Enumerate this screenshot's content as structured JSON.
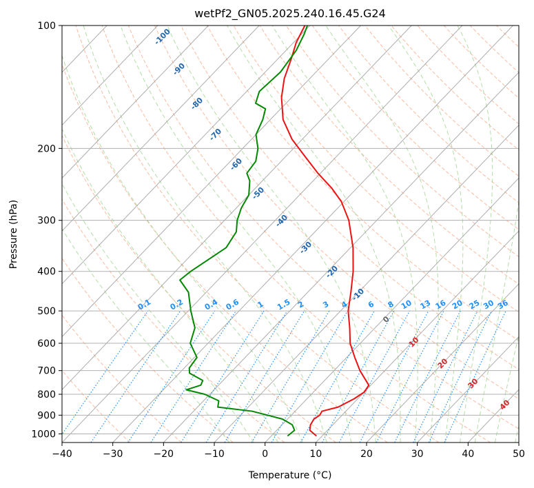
{
  "chart_data": {
    "type": "line",
    "chart_kind": "skew-T log-P diagram",
    "title": "wetPf2_GN05.2025.240.16.45.G24",
    "xlabel": "Temperature (°C)",
    "ylabel": "Pressure (hPa)",
    "xlim": [
      -40,
      50
    ],
    "ylim": [
      1050,
      100
    ],
    "y_scale": "log",
    "x_ticks": [
      "−40",
      "−30",
      "−20",
      "−10",
      "0",
      "10",
      "20",
      "30",
      "40",
      "50"
    ],
    "y_ticks": [
      100,
      200,
      300,
      400,
      500,
      600,
      700,
      800,
      900,
      1000
    ],
    "grid": true,
    "legend": "none",
    "series": [
      {
        "role": "temperature",
        "color": "#ee1111",
        "points": [
          {
            "p": 1012,
            "t": 8.9
          },
          {
            "p": 980,
            "t": 6.5
          },
          {
            "p": 950,
            "t": 5.6
          },
          {
            "p": 920,
            "t": 5.2
          },
          {
            "p": 900,
            "t": 5.6
          },
          {
            "p": 880,
            "t": 5.3
          },
          {
            "p": 860,
            "t": 7.7
          },
          {
            "p": 820,
            "t": 9.3
          },
          {
            "p": 790,
            "t": 10.0
          },
          {
            "p": 760,
            "t": 9.6
          },
          {
            "p": 700,
            "t": 5.1
          },
          {
            "p": 650,
            "t": 1.6
          },
          {
            "p": 600,
            "t": -2.0
          },
          {
            "p": 550,
            "t": -5.0
          },
          {
            "p": 500,
            "t": -8.5
          },
          {
            "p": 450,
            "t": -11.5
          },
          {
            "p": 400,
            "t": -15.0
          },
          {
            "p": 350,
            "t": -19.5
          },
          {
            "p": 300,
            "t": -25.5
          },
          {
            "p": 270,
            "t": -30.5
          },
          {
            "p": 250,
            "t": -35.0
          },
          {
            "p": 230,
            "t": -40.5
          },
          {
            "p": 210,
            "t": -46.0
          },
          {
            "p": 190,
            "t": -52.0
          },
          {
            "p": 170,
            "t": -57.5
          },
          {
            "p": 150,
            "t": -62.0
          },
          {
            "p": 135,
            "t": -65.0
          },
          {
            "p": 120,
            "t": -67.5
          },
          {
            "p": 110,
            "t": -69.5
          },
          {
            "p": 100,
            "t": -71.0
          }
        ]
      },
      {
        "role": "dewpoint",
        "color": "#008800",
        "points": [
          {
            "p": 1012,
            "t": 3.2
          },
          {
            "p": 980,
            "t": 3.5
          },
          {
            "p": 950,
            "t": 2.0
          },
          {
            "p": 920,
            "t": -1.0
          },
          {
            "p": 880,
            "t": -8.5
          },
          {
            "p": 860,
            "t": -16.0
          },
          {
            "p": 830,
            "t": -17.0
          },
          {
            "p": 800,
            "t": -21.0
          },
          {
            "p": 780,
            "t": -25.5
          },
          {
            "p": 760,
            "t": -23.5
          },
          {
            "p": 740,
            "t": -24.0
          },
          {
            "p": 710,
            "t": -28.0
          },
          {
            "p": 690,
            "t": -29.0
          },
          {
            "p": 650,
            "t": -29.5
          },
          {
            "p": 600,
            "t": -33.5
          },
          {
            "p": 550,
            "t": -35.5
          },
          {
            "p": 500,
            "t": -39.5
          },
          {
            "p": 450,
            "t": -43.5
          },
          {
            "p": 420,
            "t": -47.5
          },
          {
            "p": 400,
            "t": -47.0
          },
          {
            "p": 350,
            "t": -44.5
          },
          {
            "p": 320,
            "t": -45.5
          },
          {
            "p": 300,
            "t": -47.5
          },
          {
            "p": 280,
            "t": -49.0
          },
          {
            "p": 260,
            "t": -50.0
          },
          {
            "p": 240,
            "t": -52.5
          },
          {
            "p": 230,
            "t": -54.5
          },
          {
            "p": 215,
            "t": -55.0
          },
          {
            "p": 200,
            "t": -57.0
          },
          {
            "p": 185,
            "t": -60.0
          },
          {
            "p": 170,
            "t": -61.5
          },
          {
            "p": 160,
            "t": -63.0
          },
          {
            "p": 155,
            "t": -66.0
          },
          {
            "p": 145,
            "t": -67.5
          },
          {
            "p": 130,
            "t": -67.0
          },
          {
            "p": 115,
            "t": -68.0
          },
          {
            "p": 105,
            "t": -69.5
          },
          {
            "p": 100,
            "t": -70.5
          }
        ]
      }
    ],
    "dry_adiabat_labels": [
      "-100",
      "-90",
      "-80",
      "-70",
      "-60",
      "-50",
      "-40",
      "-30",
      "-20",
      "-10"
    ],
    "mixing_ratio_labels": [
      "0.1",
      "0.2",
      "0.4",
      "0.6",
      "1",
      "1.5",
      "2",
      "3",
      "4",
      "6",
      "8",
      "10",
      "13",
      "16",
      "20",
      "25",
      "30",
      "36"
    ],
    "moist_adiabat_labels": [
      "0",
      "10",
      "20",
      "30",
      "40"
    ],
    "colors": {
      "isotherm": "#999999",
      "dry_adiabat": "#f4a582",
      "moist_adiabat": "#a6d796",
      "mixing_ratio": "#1e90ff",
      "dry_adiabat_label": "#2166ac",
      "moist_adiabat_label": "#d62728",
      "moist_adiabat_zero_label": "#666666"
    }
  }
}
